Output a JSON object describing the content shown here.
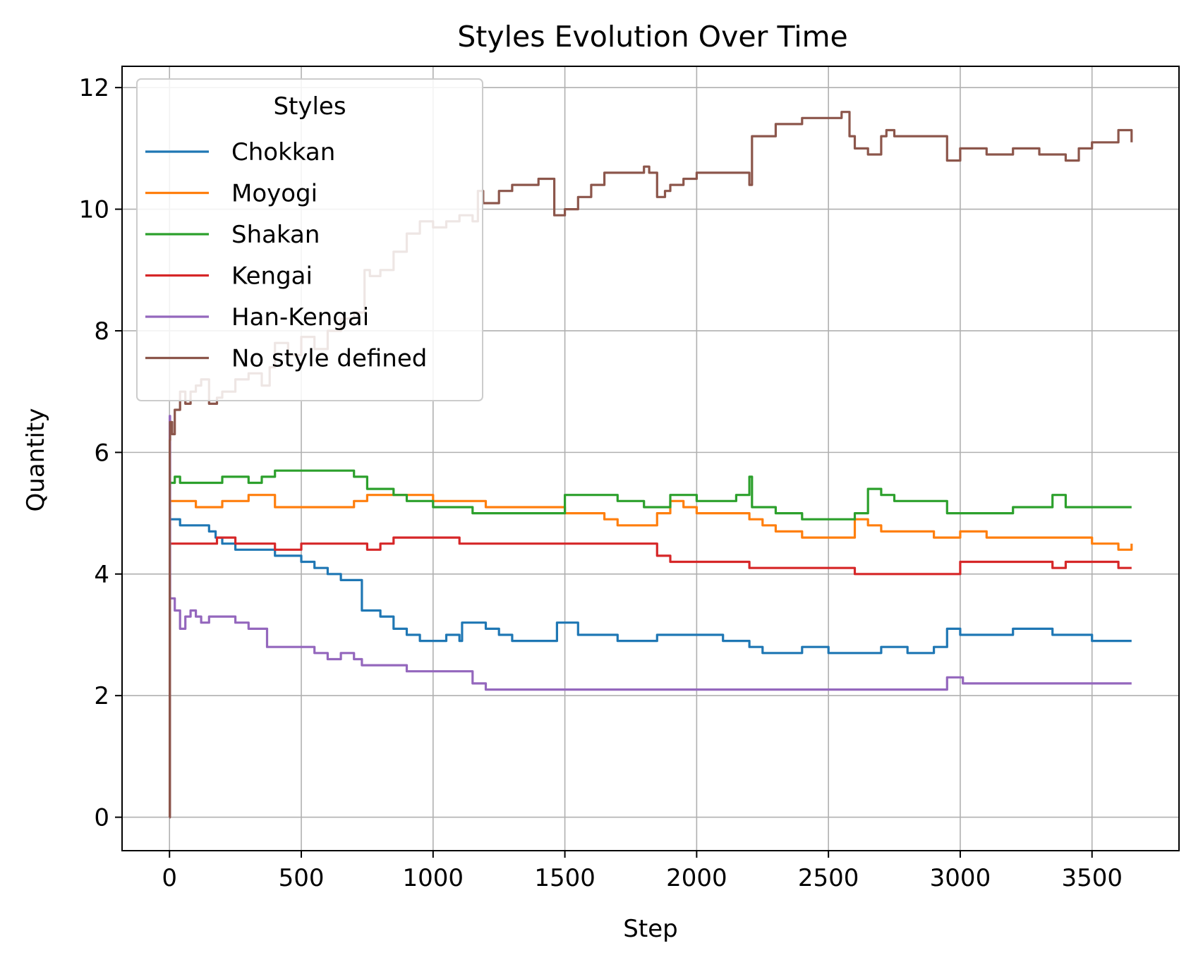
{
  "chart_data": {
    "type": "line",
    "title": "Styles Evolution Over Time",
    "xlabel": "Step",
    "ylabel": "Quantity",
    "xlim": [
      -180,
      3830
    ],
    "ylim": [
      -0.55,
      12.35
    ],
    "xticks": [
      0,
      500,
      1000,
      1500,
      2000,
      2500,
      3000,
      3500
    ],
    "yticks": [
      0,
      2,
      4,
      6,
      8,
      10,
      12
    ],
    "grid": true,
    "legend": {
      "title": "Styles",
      "placement": "top-left"
    },
    "series": [
      {
        "name": "Chokkan",
        "color": "#1f77b4",
        "x": [
          0,
          1,
          2,
          40,
          60,
          100,
          150,
          175,
          200,
          250,
          300,
          350,
          400,
          450,
          500,
          550,
          600,
          650,
          700,
          730,
          760,
          800,
          850,
          900,
          950,
          1000,
          1050,
          1100,
          1110,
          1150,
          1200,
          1250,
          1300,
          1400,
          1460,
          1470,
          1550,
          1600,
          1700,
          1800,
          1850,
          1900,
          2000,
          2100,
          2200,
          2250,
          2300,
          2400,
          2500,
          2600,
          2700,
          2800,
          2900,
          2950,
          3000,
          3100,
          3200,
          3300,
          3350,
          3400,
          3500,
          3650
        ],
        "y": [
          0,
          4.9,
          4.9,
          4.8,
          4.8,
          4.8,
          4.7,
          4.6,
          4.5,
          4.4,
          4.4,
          4.4,
          4.3,
          4.3,
          4.2,
          4.1,
          4.0,
          3.9,
          3.9,
          3.4,
          3.4,
          3.3,
          3.1,
          3.0,
          2.9,
          2.9,
          3.0,
          2.9,
          3.2,
          3.2,
          3.1,
          3.0,
          2.9,
          2.9,
          2.9,
          3.2,
          3.0,
          3.0,
          2.9,
          2.9,
          3.0,
          3.0,
          3.0,
          2.9,
          2.8,
          2.7,
          2.7,
          2.8,
          2.7,
          2.7,
          2.8,
          2.7,
          2.8,
          3.1,
          3.0,
          3.0,
          3.1,
          3.1,
          3.0,
          3.0,
          2.9,
          2.9
        ]
      },
      {
        "name": "Moyogi",
        "color": "#ff7f0e",
        "x": [
          0,
          1,
          2,
          100,
          200,
          250,
          300,
          350,
          400,
          500,
          600,
          700,
          750,
          800,
          900,
          1000,
          1100,
          1200,
          1300,
          1400,
          1460,
          1500,
          1600,
          1650,
          1700,
          1800,
          1850,
          1900,
          1950,
          2000,
          2100,
          2200,
          2250,
          2300,
          2400,
          2500,
          2550,
          2600,
          2650,
          2700,
          2800,
          2900,
          2950,
          3000,
          3100,
          3200,
          3300,
          3400,
          3450,
          3500,
          3600,
          3650
        ],
        "y": [
          0,
          5.2,
          5.2,
          5.1,
          5.2,
          5.2,
          5.3,
          5.3,
          5.1,
          5.1,
          5.1,
          5.2,
          5.3,
          5.3,
          5.3,
          5.2,
          5.2,
          5.1,
          5.1,
          5.1,
          5.1,
          5.0,
          5.0,
          4.9,
          4.8,
          4.8,
          5.0,
          5.2,
          5.1,
          5.0,
          5.0,
          4.9,
          4.8,
          4.7,
          4.6,
          4.6,
          4.6,
          4.9,
          4.8,
          4.7,
          4.7,
          4.6,
          4.6,
          4.7,
          4.6,
          4.6,
          4.6,
          4.6,
          4.6,
          4.5,
          4.4,
          4.5
        ]
      },
      {
        "name": "Shakan",
        "color": "#2ca02c",
        "x": [
          0,
          1,
          2,
          20,
          40,
          100,
          150,
          200,
          300,
          350,
          400,
          450,
          500,
          600,
          650,
          700,
          730,
          750,
          800,
          850,
          900,
          950,
          1000,
          1050,
          1100,
          1150,
          1200,
          1300,
          1400,
          1450,
          1500,
          1600,
          1700,
          1800,
          1850,
          1900,
          2000,
          2100,
          2150,
          2200,
          2210,
          2300,
          2400,
          2500,
          2550,
          2600,
          2650,
          2700,
          2750,
          2800,
          2900,
          2950,
          3000,
          3100,
          3200,
          3300,
          3350,
          3400,
          3500,
          3650
        ],
        "y": [
          0,
          5.5,
          5.5,
          5.6,
          5.5,
          5.5,
          5.5,
          5.6,
          5.5,
          5.6,
          5.7,
          5.7,
          5.7,
          5.7,
          5.7,
          5.6,
          5.6,
          5.4,
          5.4,
          5.3,
          5.2,
          5.2,
          5.1,
          5.1,
          5.1,
          5.0,
          5.0,
          5.0,
          5.0,
          5.0,
          5.3,
          5.3,
          5.2,
          5.1,
          5.1,
          5.3,
          5.2,
          5.2,
          5.3,
          5.6,
          5.1,
          5.0,
          4.9,
          4.9,
          4.9,
          5.0,
          5.4,
          5.3,
          5.2,
          5.2,
          5.2,
          5.0,
          5.0,
          5.0,
          5.1,
          5.1,
          5.3,
          5.1,
          5.1,
          5.1
        ]
      },
      {
        "name": "Kengai",
        "color": "#d62728",
        "x": [
          0,
          1,
          2,
          100,
          150,
          180,
          200,
          250,
          300,
          350,
          400,
          500,
          600,
          700,
          750,
          800,
          850,
          900,
          1000,
          1100,
          1200,
          1300,
          1400,
          1500,
          1600,
          1700,
          1800,
          1850,
          1900,
          2000,
          2100,
          2200,
          2300,
          2400,
          2500,
          2600,
          2700,
          2800,
          2900,
          3000,
          3050,
          3100,
          3200,
          3300,
          3350,
          3400,
          3500,
          3600,
          3650
        ],
        "y": [
          0,
          4.5,
          4.5,
          4.5,
          4.5,
          4.6,
          4.6,
          4.5,
          4.5,
          4.5,
          4.4,
          4.5,
          4.5,
          4.5,
          4.4,
          4.5,
          4.6,
          4.6,
          4.6,
          4.5,
          4.5,
          4.5,
          4.5,
          4.5,
          4.5,
          4.5,
          4.5,
          4.3,
          4.2,
          4.2,
          4.2,
          4.1,
          4.1,
          4.1,
          4.1,
          4.0,
          4.0,
          4.0,
          4.0,
          4.2,
          4.2,
          4.2,
          4.2,
          4.2,
          4.1,
          4.2,
          4.2,
          4.1,
          4.1
        ]
      },
      {
        "name": "Han-Kengai",
        "color": "#9467bd",
        "x": [
          0,
          1,
          2,
          20,
          40,
          60,
          80,
          100,
          120,
          150,
          200,
          250,
          300,
          350,
          370,
          450,
          500,
          550,
          600,
          650,
          700,
          730,
          760,
          800,
          900,
          1000,
          1100,
          1150,
          1200,
          1300,
          1400,
          1600,
          1800,
          2000,
          2200,
          2400,
          2600,
          2800,
          2940,
          2950,
          3000,
          3010,
          3100,
          3200,
          3400,
          3650
        ],
        "y": [
          0,
          6.6,
          3.6,
          3.4,
          3.1,
          3.3,
          3.4,
          3.3,
          3.2,
          3.3,
          3.3,
          3.2,
          3.1,
          3.1,
          2.8,
          2.8,
          2.8,
          2.7,
          2.6,
          2.7,
          2.6,
          2.5,
          2.5,
          2.5,
          2.4,
          2.4,
          2.4,
          2.2,
          2.1,
          2.1,
          2.1,
          2.1,
          2.1,
          2.1,
          2.1,
          2.1,
          2.1,
          2.1,
          2.1,
          2.3,
          2.3,
          2.2,
          2.2,
          2.2,
          2.2,
          2.2
        ]
      },
      {
        "name": "No style defined",
        "color": "#8c564b",
        "x": [
          0,
          1,
          2,
          10,
          20,
          40,
          60,
          80,
          100,
          120,
          150,
          180,
          200,
          250,
          300,
          350,
          380,
          400,
          450,
          500,
          550,
          600,
          650,
          700,
          740,
          760,
          800,
          850,
          900,
          950,
          1000,
          1050,
          1100,
          1150,
          1170,
          1190,
          1200,
          1250,
          1300,
          1350,
          1400,
          1450,
          1460,
          1500,
          1550,
          1600,
          1650,
          1700,
          1750,
          1800,
          1820,
          1850,
          1880,
          1900,
          1950,
          2000,
          2100,
          2200,
          2210,
          2300,
          2400,
          2500,
          2550,
          2560,
          2580,
          2600,
          2650,
          2700,
          2720,
          2750,
          2800,
          2850,
          2900,
          2950,
          3000,
          3050,
          3100,
          3150,
          3200,
          3300,
          3350,
          3400,
          3450,
          3500,
          3600,
          3650
        ],
        "y": [
          0,
          6.2,
          6.5,
          6.3,
          6.7,
          7.0,
          6.8,
          7.0,
          7.1,
          7.2,
          6.8,
          6.9,
          7.0,
          7.2,
          7.3,
          7.1,
          7.4,
          7.8,
          7.6,
          7.9,
          7.7,
          8.0,
          8.2,
          8.3,
          9.0,
          8.9,
          9.0,
          9.3,
          9.6,
          9.8,
          9.7,
          9.8,
          9.9,
          9.8,
          10.3,
          10.1,
          10.1,
          10.3,
          10.4,
          10.4,
          10.5,
          10.5,
          9.9,
          10.0,
          10.2,
          10.4,
          10.6,
          10.6,
          10.6,
          10.7,
          10.6,
          10.2,
          10.3,
          10.4,
          10.5,
          10.6,
          10.6,
          10.4,
          11.2,
          11.4,
          11.5,
          11.5,
          11.6,
          11.6,
          11.2,
          11.0,
          10.9,
          11.2,
          11.3,
          11.2,
          11.2,
          11.2,
          11.2,
          10.8,
          11.0,
          11.0,
          10.9,
          10.9,
          11.0,
          10.9,
          10.9,
          10.8,
          11.0,
          11.1,
          11.3,
          11.1
        ]
      }
    ]
  }
}
